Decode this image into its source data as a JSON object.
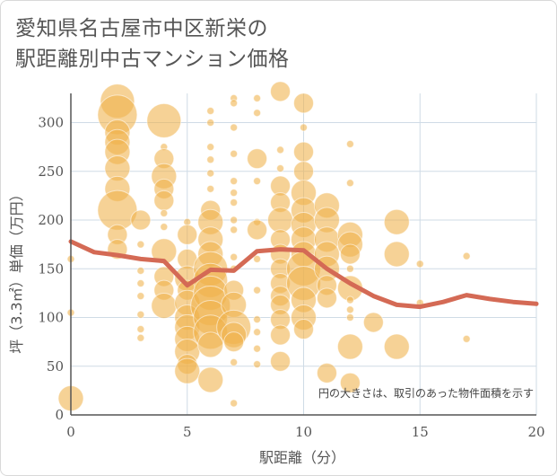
{
  "title_lines": [
    "愛知県名古屋市中区新栄の",
    "駅距離別中古マンション価格"
  ],
  "chart_data": {
    "type": "scatter",
    "xlabel": "駅距離（分）",
    "ylabel": "坪（3.3㎡）単価（万円）",
    "xlim": [
      0,
      20
    ],
    "ylim": [
      0,
      330
    ],
    "x_ticks": [
      0,
      5,
      10,
      15,
      20
    ],
    "y_ticks": [
      0,
      50,
      100,
      150,
      200,
      250,
      300
    ],
    "grid": true,
    "note": "円の大きさは、取引のあった物件面積を示す",
    "bubble_color": "#f0b24a",
    "line_color": "#d46a55",
    "bubbles": [
      {
        "x": 0,
        "y": 17,
        "s": 3
      },
      {
        "x": 0,
        "y": 105,
        "s": 1
      },
      {
        "x": 0,
        "y": 160,
        "s": 1
      },
      {
        "x": 2,
        "y": 322,
        "s": 4
      },
      {
        "x": 2,
        "y": 308,
        "s": 5
      },
      {
        "x": 2,
        "y": 290,
        "s": 3
      },
      {
        "x": 2,
        "y": 280,
        "s": 3
      },
      {
        "x": 2,
        "y": 270,
        "s": 3
      },
      {
        "x": 2,
        "y": 253,
        "s": 3
      },
      {
        "x": 2,
        "y": 232,
        "s": 3
      },
      {
        "x": 2,
        "y": 210,
        "s": 5
      },
      {
        "x": 2,
        "y": 185,
        "s": 2
      },
      {
        "x": 2,
        "y": 170,
        "s": 2
      },
      {
        "x": 3,
        "y": 200,
        "s": 2
      },
      {
        "x": 3,
        "y": 175,
        "s": 1
      },
      {
        "x": 3,
        "y": 148,
        "s": 1
      },
      {
        "x": 3,
        "y": 135,
        "s": 1
      },
      {
        "x": 3,
        "y": 122,
        "s": 1
      },
      {
        "x": 3,
        "y": 103,
        "s": 1
      },
      {
        "x": 3,
        "y": 88,
        "s": 1
      },
      {
        "x": 3,
        "y": 79,
        "s": 1
      },
      {
        "x": 4,
        "y": 302,
        "s": 4
      },
      {
        "x": 4,
        "y": 275,
        "s": 1
      },
      {
        "x": 4,
        "y": 263,
        "s": 2
      },
      {
        "x": 4,
        "y": 245,
        "s": 3
      },
      {
        "x": 4,
        "y": 232,
        "s": 2
      },
      {
        "x": 4,
        "y": 220,
        "s": 2
      },
      {
        "x": 4,
        "y": 207,
        "s": 1
      },
      {
        "x": 4,
        "y": 193,
        "s": 1
      },
      {
        "x": 4,
        "y": 168,
        "s": 3
      },
      {
        "x": 4,
        "y": 142,
        "s": 2
      },
      {
        "x": 4,
        "y": 128,
        "s": 2
      },
      {
        "x": 4,
        "y": 112,
        "s": 3
      },
      {
        "x": 5,
        "y": 198,
        "s": 1
      },
      {
        "x": 5,
        "y": 185,
        "s": 2
      },
      {
        "x": 5,
        "y": 160,
        "s": 2
      },
      {
        "x": 5,
        "y": 140,
        "s": 3
      },
      {
        "x": 5,
        "y": 128,
        "s": 2
      },
      {
        "x": 5,
        "y": 115,
        "s": 3
      },
      {
        "x": 5,
        "y": 100,
        "s": 3
      },
      {
        "x": 5,
        "y": 90,
        "s": 3
      },
      {
        "x": 5,
        "y": 78,
        "s": 3
      },
      {
        "x": 5,
        "y": 65,
        "s": 3
      },
      {
        "x": 5,
        "y": 52,
        "s": 2
      },
      {
        "x": 5,
        "y": 45,
        "s": 3
      },
      {
        "x": 6,
        "y": 312,
        "s": 1
      },
      {
        "x": 6,
        "y": 300,
        "s": 1
      },
      {
        "x": 6,
        "y": 275,
        "s": 1
      },
      {
        "x": 6,
        "y": 262,
        "s": 1
      },
      {
        "x": 6,
        "y": 248,
        "s": 1
      },
      {
        "x": 6,
        "y": 232,
        "s": 1
      },
      {
        "x": 6,
        "y": 210,
        "s": 2
      },
      {
        "x": 6,
        "y": 198,
        "s": 3
      },
      {
        "x": 6,
        "y": 180,
        "s": 3
      },
      {
        "x": 6,
        "y": 165,
        "s": 3
      },
      {
        "x": 6,
        "y": 150,
        "s": 4
      },
      {
        "x": 6,
        "y": 138,
        "s": 4
      },
      {
        "x": 6,
        "y": 125,
        "s": 4
      },
      {
        "x": 6,
        "y": 112,
        "s": 5
      },
      {
        "x": 6,
        "y": 100,
        "s": 4
      },
      {
        "x": 6,
        "y": 85,
        "s": 4
      },
      {
        "x": 6,
        "y": 72,
        "s": 3
      },
      {
        "x": 6,
        "y": 36,
        "s": 3
      },
      {
        "x": 7,
        "y": 325,
        "s": 1
      },
      {
        "x": 7,
        "y": 320,
        "s": 1
      },
      {
        "x": 7,
        "y": 295,
        "s": 1
      },
      {
        "x": 7,
        "y": 268,
        "s": 1
      },
      {
        "x": 7,
        "y": 240,
        "s": 1
      },
      {
        "x": 7,
        "y": 228,
        "s": 1
      },
      {
        "x": 7,
        "y": 218,
        "s": 1
      },
      {
        "x": 7,
        "y": 200,
        "s": 1
      },
      {
        "x": 7,
        "y": 190,
        "s": 1
      },
      {
        "x": 7,
        "y": 162,
        "s": 1
      },
      {
        "x": 7,
        "y": 150,
        "s": 1
      },
      {
        "x": 7,
        "y": 128,
        "s": 2
      },
      {
        "x": 7,
        "y": 113,
        "s": 3
      },
      {
        "x": 7,
        "y": 90,
        "s": 4
      },
      {
        "x": 7,
        "y": 82,
        "s": 3
      },
      {
        "x": 7,
        "y": 75,
        "s": 2
      },
      {
        "x": 7,
        "y": 54,
        "s": 1
      },
      {
        "x": 7,
        "y": 12,
        "s": 1
      },
      {
        "x": 8,
        "y": 325,
        "s": 1
      },
      {
        "x": 8,
        "y": 310,
        "s": 1
      },
      {
        "x": 8,
        "y": 263,
        "s": 2
      },
      {
        "x": 8,
        "y": 240,
        "s": 1
      },
      {
        "x": 8,
        "y": 198,
        "s": 1
      },
      {
        "x": 8,
        "y": 190,
        "s": 2
      },
      {
        "x": 8,
        "y": 160,
        "s": 1
      },
      {
        "x": 8,
        "y": 128,
        "s": 1
      },
      {
        "x": 8,
        "y": 98,
        "s": 1
      },
      {
        "x": 8,
        "y": 85,
        "s": 1
      },
      {
        "x": 8,
        "y": 68,
        "s": 1
      },
      {
        "x": 8,
        "y": 52,
        "s": 1
      },
      {
        "x": 9,
        "y": 332,
        "s": 2
      },
      {
        "x": 9,
        "y": 272,
        "s": 1
      },
      {
        "x": 9,
        "y": 253,
        "s": 1
      },
      {
        "x": 9,
        "y": 235,
        "s": 2
      },
      {
        "x": 9,
        "y": 218,
        "s": 2
      },
      {
        "x": 9,
        "y": 200,
        "s": 3
      },
      {
        "x": 9,
        "y": 180,
        "s": 2
      },
      {
        "x": 9,
        "y": 165,
        "s": 2
      },
      {
        "x": 9,
        "y": 150,
        "s": 2
      },
      {
        "x": 9,
        "y": 135,
        "s": 2
      },
      {
        "x": 9,
        "y": 122,
        "s": 2
      },
      {
        "x": 9,
        "y": 113,
        "s": 2
      },
      {
        "x": 9,
        "y": 98,
        "s": 2
      },
      {
        "x": 9,
        "y": 82,
        "s": 2
      },
      {
        "x": 9,
        "y": 55,
        "s": 2
      },
      {
        "x": 10,
        "y": 320,
        "s": 2
      },
      {
        "x": 10,
        "y": 295,
        "s": 1
      },
      {
        "x": 10,
        "y": 270,
        "s": 2
      },
      {
        "x": 10,
        "y": 250,
        "s": 2
      },
      {
        "x": 10,
        "y": 228,
        "s": 3
      },
      {
        "x": 10,
        "y": 210,
        "s": 3
      },
      {
        "x": 10,
        "y": 195,
        "s": 3
      },
      {
        "x": 10,
        "y": 180,
        "s": 3
      },
      {
        "x": 10,
        "y": 165,
        "s": 3
      },
      {
        "x": 10,
        "y": 150,
        "s": 4
      },
      {
        "x": 10,
        "y": 135,
        "s": 4
      },
      {
        "x": 10,
        "y": 118,
        "s": 3
      },
      {
        "x": 10,
        "y": 100,
        "s": 3
      },
      {
        "x": 10,
        "y": 88,
        "s": 2
      },
      {
        "x": 11,
        "y": 215,
        "s": 3
      },
      {
        "x": 11,
        "y": 200,
        "s": 3
      },
      {
        "x": 11,
        "y": 180,
        "s": 3
      },
      {
        "x": 11,
        "y": 165,
        "s": 3
      },
      {
        "x": 11,
        "y": 150,
        "s": 3
      },
      {
        "x": 11,
        "y": 133,
        "s": 2
      },
      {
        "x": 11,
        "y": 120,
        "s": 2
      },
      {
        "x": 11,
        "y": 43,
        "s": 2
      },
      {
        "x": 12,
        "y": 278,
        "s": 1
      },
      {
        "x": 12,
        "y": 238,
        "s": 1
      },
      {
        "x": 12,
        "y": 185,
        "s": 3
      },
      {
        "x": 12,
        "y": 175,
        "s": 3
      },
      {
        "x": 12,
        "y": 165,
        "s": 2
      },
      {
        "x": 12,
        "y": 150,
        "s": 1
      },
      {
        "x": 12,
        "y": 130,
        "s": 3
      },
      {
        "x": 12,
        "y": 118,
        "s": 1
      },
      {
        "x": 12,
        "y": 108,
        "s": 1
      },
      {
        "x": 12,
        "y": 100,
        "s": 1
      },
      {
        "x": 12,
        "y": 70,
        "s": 3
      },
      {
        "x": 12,
        "y": 33,
        "s": 2
      },
      {
        "x": 13,
        "y": 95,
        "s": 2
      },
      {
        "x": 14,
        "y": 198,
        "s": 3
      },
      {
        "x": 14,
        "y": 165,
        "s": 3
      },
      {
        "x": 14,
        "y": 70,
        "s": 3
      },
      {
        "x": 15,
        "y": 155,
        "s": 1
      },
      {
        "x": 15,
        "y": 115,
        "s": 1
      },
      {
        "x": 17,
        "y": 163,
        "s": 1
      },
      {
        "x": 17,
        "y": 78,
        "s": 1
      }
    ],
    "avg_line": {
      "x": [
        0,
        1,
        2,
        3,
        4,
        5,
        6,
        7,
        8,
        9,
        10,
        11,
        12,
        13,
        14,
        15,
        16,
        17,
        18,
        19,
        20
      ],
      "y": [
        178,
        167,
        164,
        160,
        158,
        133,
        149,
        148,
        168,
        170,
        169,
        150,
        135,
        122,
        113,
        111,
        116,
        123,
        119,
        116,
        114
      ]
    }
  }
}
